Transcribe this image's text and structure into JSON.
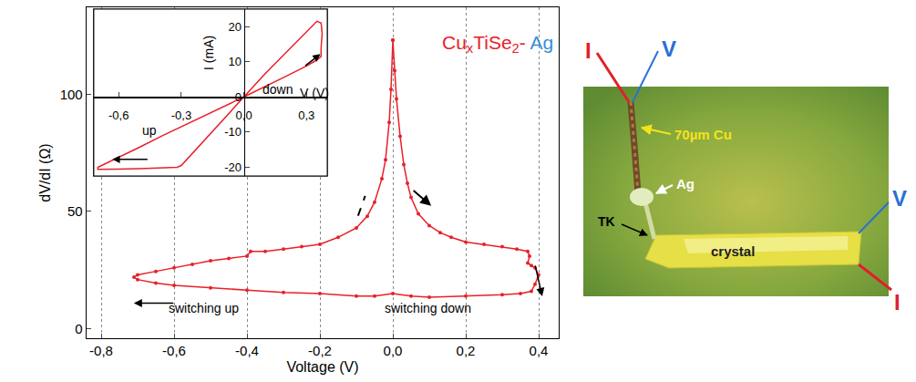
{
  "chart_data": [
    {
      "type": "scatter",
      "label": [
        {
          "text": "Cu",
          "color": "#e8202a"
        },
        {
          "text": "x",
          "sub": true,
          "color": "#e8202a"
        },
        {
          "text": "TiSe",
          "color": "#e8202a"
        },
        {
          "text": "2",
          "sub": true,
          "color": "#e8202a"
        },
        {
          "text": "- ",
          "color": "#e8202a"
        },
        {
          "text": "Ag",
          "color": "#3a8fd6"
        }
      ],
      "x_label": "Voltage (V)",
      "y_label": "dV/dI (Ω)",
      "xlim": [
        -0.84,
        0.455
      ],
      "xticks": [
        {
          "value": -0.8,
          "label": "-0,8"
        },
        {
          "value": -0.6,
          "label": "-0,6"
        },
        {
          "value": -0.4,
          "label": "-0,4"
        },
        {
          "value": -0.2,
          "label": "-0,2"
        },
        {
          "value": 0,
          "label": "0,0"
        },
        {
          "value": 0.2,
          "label": "0,2"
        },
        {
          "value": 0.4,
          "label": "0,4"
        }
      ],
      "ylim": [
        -4,
        137
      ],
      "yticks": [
        0,
        50,
        100
      ],
      "grid": "x",
      "annotations": [
        {
          "text": "switching up"
        },
        {
          "text": "switching down"
        }
      ],
      "series": [
        {
          "color": "#e8202a",
          "marker": "circle",
          "line_style": "solid",
          "x": [
            0.0,
            0.005,
            0.01,
            0.02,
            0.03,
            0.04,
            0.05,
            0.07,
            0.1,
            0.13,
            0.16,
            0.2,
            0.25,
            0.3,
            0.34,
            0.37,
            0.375,
            0.37,
            0.38,
            0.39,
            0.4,
            0.39,
            0.38,
            0.35,
            0.3,
            0.2,
            0.1,
            0.05,
            0.0,
            -0.05,
            -0.1,
            -0.2,
            -0.3,
            -0.4,
            -0.5,
            -0.6,
            -0.65,
            -0.7,
            -0.71,
            -0.7,
            -0.65,
            -0.6,
            -0.55,
            -0.5,
            -0.45,
            -0.4,
            -0.39,
            -0.35,
            -0.3,
            -0.25,
            -0.2,
            -0.15,
            -0.1,
            -0.07,
            -0.05,
            -0.03,
            -0.02,
            -0.01,
            -0.005,
            0.0
          ],
          "values": [
            123,
            110,
            98,
            82,
            70,
            62,
            56,
            49,
            44,
            41,
            39,
            37,
            36,
            35,
            34,
            33,
            31,
            28,
            27,
            26,
            23,
            19,
            16,
            15,
            14.5,
            14,
            13.5,
            14,
            15,
            14,
            14,
            15,
            15.5,
            16.5,
            17.5,
            18.5,
            19.5,
            21,
            22,
            23,
            24.5,
            26,
            27.5,
            29,
            30,
            31,
            33,
            33,
            34,
            35,
            36,
            39,
            43,
            48,
            54,
            64,
            72,
            88,
            102,
            123
          ]
        }
      ]
    },
    {
      "type": "line",
      "x_label": "V (V)",
      "y_label": "I (mA)",
      "xlim": [
        -0.72,
        0.4
      ],
      "xticks": [
        {
          "value": -0.6,
          "label": "-0,6"
        },
        {
          "value": -0.3,
          "label": "-0,3"
        },
        {
          "value": 0,
          "label": "0,0"
        },
        {
          "value": 0.3,
          "label": "0,3"
        }
      ],
      "ylim": [
        -22.5,
        25
      ],
      "yticks": [
        -20,
        -10,
        0,
        10,
        20
      ],
      "grid": false,
      "annotations": [
        {
          "text": "up"
        },
        {
          "text": "down"
        }
      ],
      "series": [
        {
          "color": "#e8202a",
          "line_style": "solid",
          "x": [
            0,
            0.1,
            0.2,
            0.3,
            0.35,
            0.37,
            0.37,
            0.375,
            0.37,
            0.35,
            0.3,
            0.2,
            0.1,
            0,
            -0.1,
            -0.2,
            -0.3,
            -0.32,
            -0.4,
            -0.5,
            -0.6,
            -0.7,
            -0.7,
            -0.6,
            -0.5,
            -0.4,
            -0.3,
            -0.2,
            -0.1,
            0
          ],
          "values": [
            0,
            2.8,
            5.8,
            8.8,
            10.5,
            11.5,
            14,
            18,
            21,
            21.5,
            18.5,
            12.5,
            6.5,
            0,
            -6.5,
            -13,
            -19.5,
            -20,
            -20.2,
            -20.4,
            -20.5,
            -20.6,
            -20,
            -17.2,
            -14.3,
            -11.3,
            -8.5,
            -5.6,
            -2.7,
            0
          ]
        }
      ]
    }
  ],
  "photo": {
    "labels": {
      "current_left": "I",
      "voltage_left": "V",
      "wire": "70µm Cu",
      "contact": "Ag",
      "sample": "crystal",
      "junction": "TK",
      "voltage_right": "V",
      "current_right": "I"
    }
  }
}
